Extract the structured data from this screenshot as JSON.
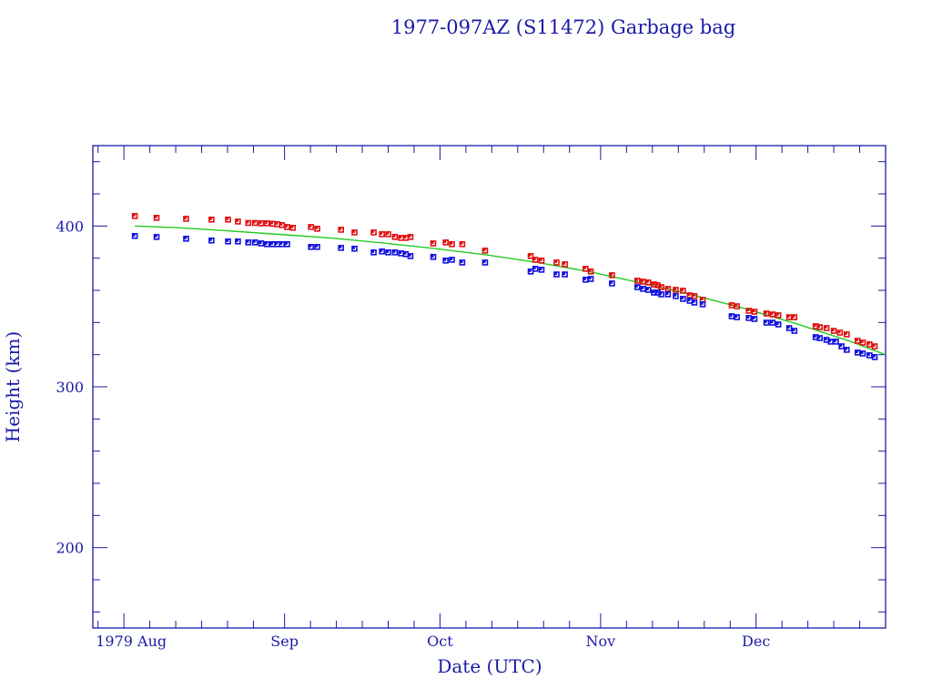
{
  "chart_data": {
    "type": "scatter",
    "title": "1977-097AZ (S11472) Garbage bag",
    "xlabel": "Date (UTC)",
    "ylabel": "Height (km)",
    "x_units": "days since 1979-08-01",
    "xlim": [
      -6,
      147
    ],
    "ylim": [
      150,
      450
    ],
    "y_ticks": [
      200,
      300,
      400
    ],
    "y_tick_labels": [
      "200",
      "300",
      "400"
    ],
    "y_minor_step": 20,
    "x_ticks": [
      0,
      31,
      61,
      92,
      122
    ],
    "x_tick_labels": [
      "1979 Aug",
      "Sep",
      "Oct",
      "Nov",
      "Dec"
    ],
    "x_minor_step_days": 5,
    "grid": false,
    "legend": "none",
    "colors": {
      "axis": "#1a1aa6",
      "apogee": "#e01010",
      "perigee": "#1010e0",
      "fit": "#22cc22"
    },
    "series": [
      {
        "name": "apogee",
        "marker": "square",
        "color": "#e01010",
        "points": [
          [
            2.1,
            406.2
          ],
          [
            6.3,
            405.1
          ],
          [
            12.0,
            404.5
          ],
          [
            16.9,
            404.0
          ],
          [
            20.1,
            404.0
          ],
          [
            22.0,
            402.8
          ],
          [
            24.0,
            401.9
          ],
          [
            25.3,
            401.9
          ],
          [
            26.5,
            401.7
          ],
          [
            27.6,
            401.7
          ],
          [
            28.7,
            401.4
          ],
          [
            29.6,
            401.1
          ],
          [
            30.5,
            400.6
          ],
          [
            31.5,
            399.4
          ],
          [
            32.6,
            398.9
          ],
          [
            36.1,
            399.4
          ],
          [
            37.3,
            398.3
          ],
          [
            41.9,
            397.7
          ],
          [
            44.5,
            396.0
          ],
          [
            48.2,
            396.0
          ],
          [
            49.8,
            394.9
          ],
          [
            51.0,
            394.9
          ],
          [
            52.3,
            393.2
          ],
          [
            53.5,
            392.6
          ],
          [
            54.4,
            392.6
          ],
          [
            55.3,
            393.2
          ],
          [
            59.7,
            389.2
          ],
          [
            62.1,
            389.8
          ],
          [
            63.3,
            388.7
          ],
          [
            65.3,
            388.7
          ],
          [
            69.7,
            384.7
          ],
          [
            78.5,
            381.3
          ],
          [
            79.4,
            379.0
          ],
          [
            80.6,
            378.5
          ],
          [
            83.5,
            377.3
          ],
          [
            85.1,
            376.2
          ],
          [
            89.1,
            373.4
          ],
          [
            90.1,
            371.7
          ],
          [
            94.2,
            369.4
          ],
          [
            99.1,
            366.0
          ],
          [
            100.2,
            365.4
          ],
          [
            101.2,
            364.9
          ],
          [
            102.3,
            363.7
          ],
          [
            103.0,
            363.2
          ],
          [
            103.7,
            362.0
          ],
          [
            105.0,
            360.9
          ],
          [
            106.5,
            360.3
          ],
          [
            107.9,
            359.8
          ],
          [
            109.2,
            356.9
          ],
          [
            110.1,
            356.4
          ],
          [
            111.7,
            354.1
          ],
          [
            117.3,
            350.7
          ],
          [
            118.3,
            350.1
          ],
          [
            120.6,
            347.3
          ],
          [
            121.7,
            346.7
          ],
          [
            124.0,
            345.6
          ],
          [
            125.2,
            345.0
          ],
          [
            126.3,
            344.5
          ],
          [
            128.4,
            343.3
          ],
          [
            129.4,
            343.3
          ],
          [
            133.5,
            337.7
          ],
          [
            134.3,
            337.1
          ],
          [
            135.6,
            336.5
          ],
          [
            137.0,
            334.8
          ],
          [
            138.2,
            333.7
          ],
          [
            139.5,
            332.6
          ],
          [
            141.6,
            328.6
          ],
          [
            142.6,
            327.5
          ],
          [
            143.9,
            326.4
          ],
          [
            144.9,
            325.2
          ]
        ]
      },
      {
        "name": "perigee",
        "marker": "square",
        "color": "#1010e0",
        "points": [
          [
            2.1,
            393.8
          ],
          [
            6.3,
            393.2
          ],
          [
            12.0,
            392.1
          ],
          [
            16.9,
            391.0
          ],
          [
            20.1,
            390.4
          ],
          [
            22.0,
            390.4
          ],
          [
            24.0,
            389.8
          ],
          [
            25.3,
            389.8
          ],
          [
            26.5,
            389.2
          ],
          [
            27.6,
            388.7
          ],
          [
            28.7,
            388.7
          ],
          [
            29.6,
            388.7
          ],
          [
            30.5,
            388.7
          ],
          [
            31.5,
            388.7
          ],
          [
            36.1,
            387.0
          ],
          [
            37.3,
            387.0
          ],
          [
            41.9,
            386.4
          ],
          [
            44.5,
            385.9
          ],
          [
            48.2,
            383.6
          ],
          [
            49.8,
            384.2
          ],
          [
            51.0,
            383.6
          ],
          [
            52.3,
            383.6
          ],
          [
            53.5,
            383.0
          ],
          [
            54.4,
            382.5
          ],
          [
            55.3,
            381.3
          ],
          [
            59.7,
            380.8
          ],
          [
            62.1,
            378.5
          ],
          [
            63.3,
            379.0
          ],
          [
            65.3,
            377.3
          ],
          [
            69.7,
            377.3
          ],
          [
            78.5,
            371.7
          ],
          [
            79.4,
            373.4
          ],
          [
            80.6,
            372.8
          ],
          [
            83.5,
            369.9
          ],
          [
            85.1,
            369.9
          ],
          [
            89.1,
            366.6
          ],
          [
            90.1,
            367.1
          ],
          [
            94.2,
            364.3
          ],
          [
            99.1,
            362.0
          ],
          [
            100.2,
            360.9
          ],
          [
            101.2,
            360.3
          ],
          [
            102.3,
            358.6
          ],
          [
            103.0,
            358.6
          ],
          [
            103.7,
            357.5
          ],
          [
            105.0,
            357.5
          ],
          [
            106.5,
            356.4
          ],
          [
            107.9,
            354.7
          ],
          [
            109.2,
            353.5
          ],
          [
            110.1,
            352.4
          ],
          [
            111.7,
            351.3
          ],
          [
            117.3,
            343.9
          ],
          [
            118.3,
            343.3
          ],
          [
            120.6,
            342.8
          ],
          [
            121.7,
            342.2
          ],
          [
            124.0,
            339.9
          ],
          [
            125.2,
            339.9
          ],
          [
            126.3,
            338.8
          ],
          [
            128.4,
            336.5
          ],
          [
            129.4,
            334.8
          ],
          [
            133.5,
            330.9
          ],
          [
            134.3,
            330.3
          ],
          [
            135.6,
            329.2
          ],
          [
            136.4,
            328.1
          ],
          [
            137.4,
            328.1
          ],
          [
            138.5,
            325.2
          ],
          [
            139.5,
            323.0
          ],
          [
            141.6,
            321.3
          ],
          [
            142.6,
            320.7
          ],
          [
            143.9,
            319.6
          ],
          [
            144.9,
            318.5
          ]
        ]
      },
      {
        "name": "fit",
        "type": "line",
        "color": "#22cc22",
        "points": [
          [
            2.1,
            400.0
          ],
          [
            10,
            399.0
          ],
          [
            20,
            397.0
          ],
          [
            30,
            394.8
          ],
          [
            40,
            392.5
          ],
          [
            50,
            389.5
          ],
          [
            60,
            386.0
          ],
          [
            70,
            382.0
          ],
          [
            80,
            377.2
          ],
          [
            90,
            371.5
          ],
          [
            100,
            364.5
          ],
          [
            110,
            357.0
          ],
          [
            120,
            348.5
          ],
          [
            130,
            339.0
          ],
          [
            140,
            328.5
          ],
          [
            147,
            320.0
          ]
        ]
      }
    ]
  }
}
